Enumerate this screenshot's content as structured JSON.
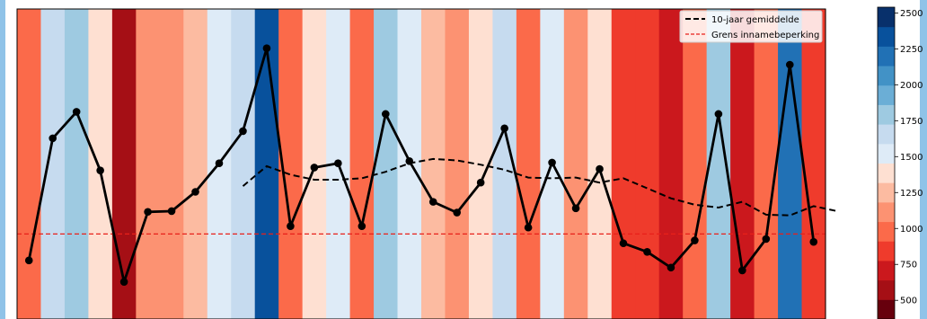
{
  "chart_data": {
    "type": "line",
    "title": "",
    "xlabel": "",
    "ylabel": "",
    "ylim": [
      370,
      2540
    ],
    "grid": false,
    "legend_position": "top-right",
    "stripe_values": [
      950,
      1640,
      1830,
      1410,
      590,
      1130,
      1130,
      1270,
      1470,
      1690,
      2270,
      1030,
      1430,
      1460,
      1030,
      1810,
      1480,
      1200,
      1120,
      1330,
      1710,
      1010,
      1470,
      1140,
      1430,
      900,
      850,
      740,
      920,
      1810,
      720,
      930,
      2160,
      910
    ],
    "series": [
      {
        "name": "",
        "color": "#000000",
        "style": "solid-with-markers",
        "values": [
          780,
          1635,
          1820,
          1410,
          630,
          1120,
          1125,
          1260,
          1460,
          1685,
          2265,
          1020,
          1430,
          1460,
          1020,
          1805,
          1475,
          1190,
          1115,
          1325,
          1705,
          1010,
          1465,
          1145,
          1420,
          900,
          840,
          730,
          920,
          1805,
          710,
          930,
          2150,
          910
        ]
      },
      {
        "name": "10-jaar gemiddelde",
        "color": "#000000",
        "style": "dashed",
        "start_index": 9,
        "values": [
          1300,
          1440,
          1380,
          1345,
          1345,
          1355,
          1400,
          1460,
          1490,
          1480,
          1450,
          1415,
          1360,
          1355,
          1360,
          1325,
          1355,
          1285,
          1215,
          1170,
          1150,
          1190,
          1100,
          1095,
          1160,
          1125
        ]
      },
      {
        "name": "Grens innamebeperking",
        "color": "#e8201a",
        "style": "dashed",
        "constant": 965
      }
    ],
    "colorbar": {
      "range": [
        370,
        2540
      ],
      "ticks": [
        500,
        750,
        1000,
        1250,
        1500,
        1750,
        2000,
        2250,
        2500
      ],
      "colors": [
        "#67000d",
        "#a50f15",
        "#cb181d",
        "#ef3b2c",
        "#fb6a4a",
        "#fc9272",
        "#fcbba1",
        "#fee0d2",
        "#deebf7",
        "#c6dbef",
        "#9ecae1",
        "#6baed6",
        "#4292c6",
        "#2171b5",
        "#08519c",
        "#08306b"
      ]
    },
    "legend": {
      "entries": [
        "10-jaar gemiddelde",
        "Grens innamebeperking"
      ]
    }
  }
}
